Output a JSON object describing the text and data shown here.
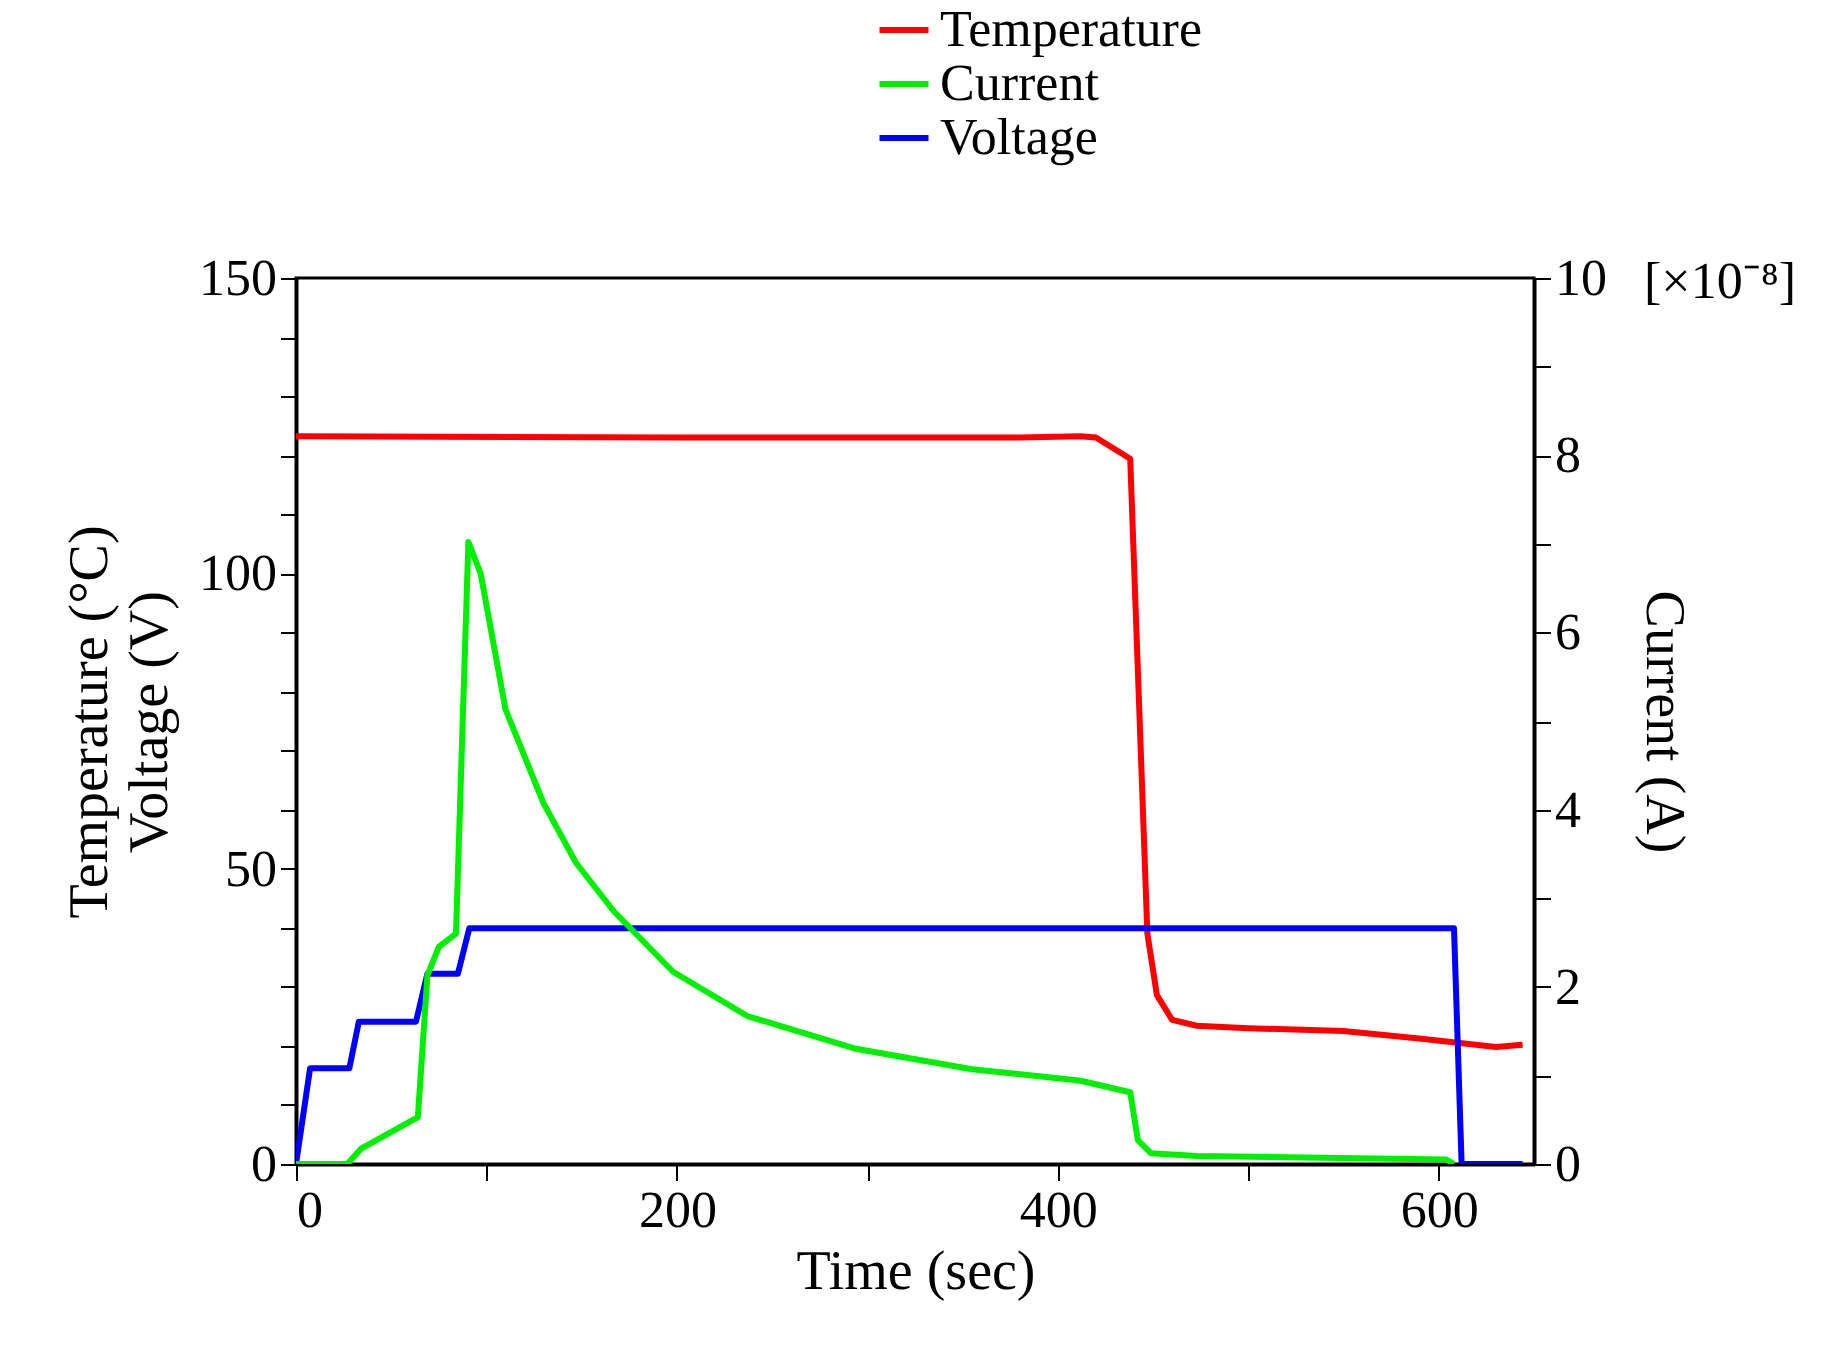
{
  "chart_data": {
    "type": "line",
    "xlabel": "Time (sec)",
    "ylabel": "Temperature (°C)\nVoltage (V)",
    "y2label": "Current (A)",
    "annotations": [
      "[×10⁻⁸]"
    ],
    "xlim": [
      0,
      650
    ],
    "xticks": [
      0,
      {
        "value": 100,
        "label": null
      },
      200,
      {
        "value": 300,
        "label": null
      },
      400,
      {
        "value": 500,
        "label": null
      },
      600
    ],
    "ylim": [
      0,
      150
    ],
    "yticks": [
      0,
      {
        "value": 10,
        "label": null
      },
      {
        "value": 20,
        "label": null
      },
      {
        "value": 30,
        "label": null
      },
      {
        "value": 40,
        "label": null
      },
      50,
      {
        "value": 60,
        "label": null
      },
      {
        "value": 70,
        "label": null
      },
      {
        "value": 80,
        "label": null
      },
      {
        "value": 90,
        "label": null
      },
      100,
      {
        "value": 110,
        "label": null
      },
      {
        "value": 120,
        "label": null
      },
      {
        "value": 130,
        "label": null
      },
      {
        "value": 140,
        "label": null
      },
      150
    ],
    "y2lim": [
      0,
      10
    ],
    "y2ticks": [
      0,
      {
        "value": 1,
        "label": null
      },
      2,
      {
        "value": 3,
        "label": null
      },
      4,
      {
        "value": 5,
        "label": null
      },
      6,
      {
        "value": 7,
        "label": null
      },
      8,
      {
        "value": 9,
        "label": null
      },
      10
    ],
    "grid": false,
    "legend": "top",
    "marker": "none",
    "line_style": "solid",
    "series": [
      {
        "name": "Temperature",
        "color": "#ff0000",
        "x": [
          0,
          200,
          380,
          412,
          420,
          438,
          447,
          452,
          460,
          473,
          500,
          550,
          591,
          630,
          644
        ],
        "values": [
          123.2,
          123,
          123,
          123.2,
          123,
          119.4,
          39,
          28.6,
          24.4,
          23.4,
          23,
          22.5,
          21.2,
          19.8,
          20.2
        ]
      },
      {
        "name": "Current",
        "color": "#00ee00",
        "axis": "y2",
        "x": [
          0,
          27,
          34,
          64,
          69,
          75,
          84,
          90.5,
          97,
          110,
          130,
          147,
          167,
          198,
          237,
          294,
          355,
          412,
          438,
          442,
          449,
          473,
          604,
          608
        ],
        "values": [
          0,
          0,
          0.17,
          0.53,
          2.13,
          2.45,
          2.6,
          7.02,
          6.66,
          5.13,
          4.07,
          3.4,
          2.85,
          2.17,
          1.67,
          1.3,
          1.07,
          0.94,
          0.81,
          0.27,
          0.12,
          0.09,
          0.05,
          0
        ]
      },
      {
        "name": "Voltage",
        "color": "#0000ff",
        "x": [
          0,
          7.4,
          28,
          33,
          63,
          69,
          85,
          91,
          608,
          612,
          644
        ],
        "values": [
          0,
          16.2,
          16.2,
          24.1,
          24.1,
          32.2,
          32.2,
          39.9,
          39.9,
          0,
          0
        ]
      }
    ]
  }
}
